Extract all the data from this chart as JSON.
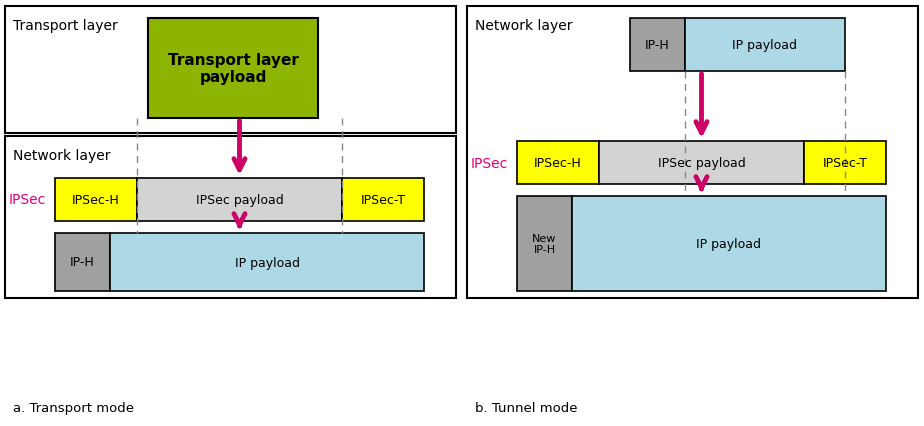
{
  "bg_color": "#ffffff",
  "yellow_color": "#ffff00",
  "light_gray_color": "#d3d3d3",
  "light_blue_color": "#add8e6",
  "green_color": "#8db500",
  "dark_gray_color": "#a0a0a0",
  "pink_color": "#e0007f",
  "arrow_color": "#cc0066",
  "label_a": "a. Transport mode",
  "label_b": "b. Tunnel mode",
  "transport_layer_label": "Transport layer",
  "network_layer_label": "Network layer",
  "transport_payload_label": "Transport layer\npayload",
  "ipsec_label": "IPSec",
  "ipsech_label": "IPSec-H",
  "ipsec_payload_label": "IPSec payload",
  "ipsect_label": "IPSec-T",
  "iph_label": "IP-H",
  "ip_payload_label": "IP payload",
  "new_iph_label": "New\nIP-H"
}
